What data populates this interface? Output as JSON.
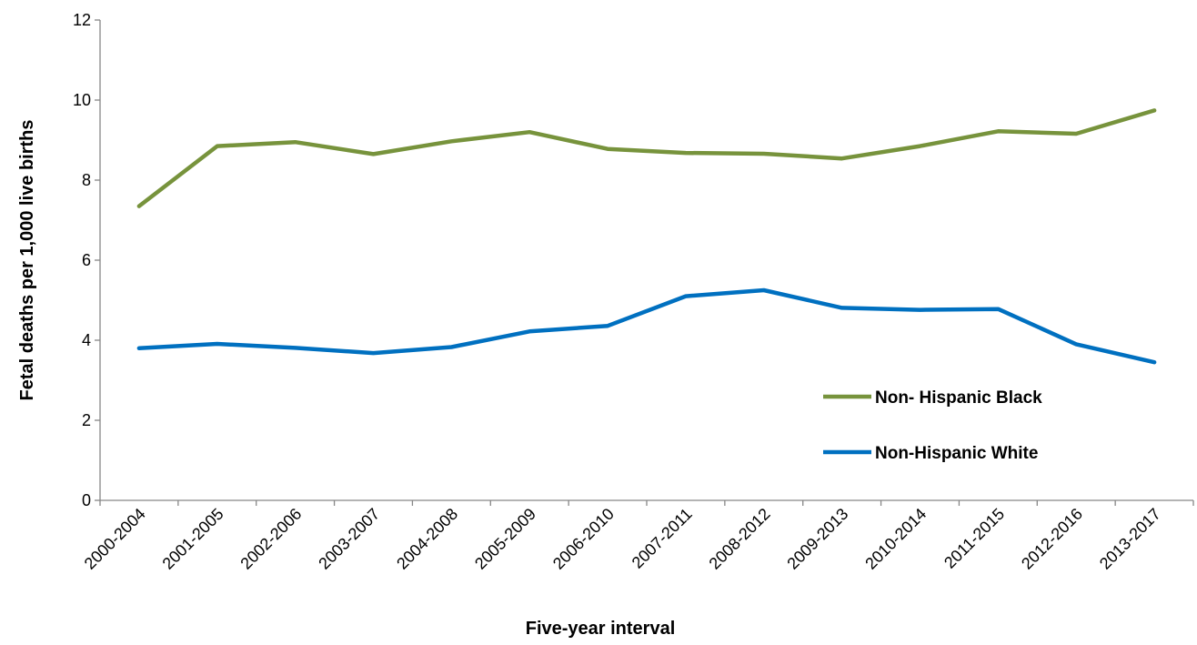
{
  "chart_data": {
    "type": "line",
    "title": "",
    "xlabel": "Five-year interval",
    "ylabel": "Fetal deaths per 1,000 live births",
    "ylim": [
      0,
      12
    ],
    "yticks": [
      0,
      2,
      4,
      6,
      8,
      10,
      12
    ],
    "grid": false,
    "legend_position": "right",
    "categories": [
      "2000-2004",
      "2001-2005",
      "2002-2006",
      "2003-2007",
      "2004-2008",
      "2005-2009",
      "2006-2010",
      "2007-2011",
      "2008-2012",
      "2009-2013",
      "2010-2014",
      "2011-2015",
      "2012-2016",
      "2013-2017"
    ],
    "series": [
      {
        "name": "Non- Hispanic Black",
        "color": "#77933c",
        "values": [
          7.35,
          8.85,
          8.95,
          8.65,
          8.97,
          9.2,
          8.78,
          8.68,
          8.66,
          8.54,
          8.85,
          9.22,
          9.16,
          9.74
        ]
      },
      {
        "name": "Non-Hispanic White",
        "color": "#0070c0",
        "values": [
          3.8,
          3.91,
          3.81,
          3.68,
          3.83,
          4.22,
          4.36,
          5.1,
          5.25,
          4.81,
          4.76,
          4.78,
          3.9,
          3.45
        ]
      }
    ]
  }
}
